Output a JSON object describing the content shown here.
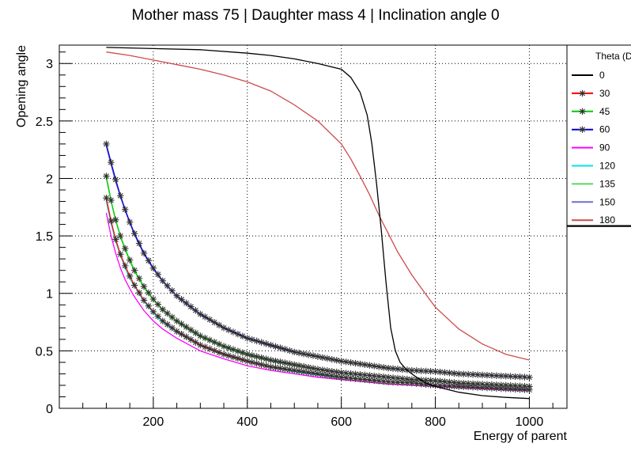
{
  "chart_data": {
    "type": "line",
    "title": "Mother mass 75 | Daughter mass 4 | Inclination angle 0",
    "xlabel": "Energy of parent",
    "ylabel": "Opening angle",
    "xlim": [
      0,
      1080
    ],
    "ylim": [
      0,
      3.16
    ],
    "x_ticks": [
      200,
      400,
      600,
      800,
      1000
    ],
    "y_ticks": [
      0,
      0.5,
      1,
      1.5,
      2,
      2.5,
      3
    ],
    "x_tick_labels": [
      "200",
      "400",
      "600",
      "800",
      "1000"
    ],
    "y_tick_labels": [
      "0",
      "0.5",
      "1",
      "1.5",
      "2",
      "2.5",
      "3"
    ],
    "grid": true,
    "legend_title": "Theta (D",
    "legend_position": "right",
    "series": [
      {
        "name": "0",
        "color": "#000000",
        "marker": false,
        "x": [
          100,
          200,
          300,
          400,
          450,
          500,
          550,
          580,
          600,
          620,
          640,
          655,
          665,
          675,
          685,
          695,
          705,
          715,
          725,
          740,
          760,
          780,
          800,
          850,
          900,
          950,
          1000
        ],
        "y": [
          3.14,
          3.13,
          3.12,
          3.09,
          3.07,
          3.04,
          3.0,
          2.97,
          2.95,
          2.88,
          2.75,
          2.55,
          2.3,
          1.95,
          1.55,
          1.1,
          0.7,
          0.5,
          0.4,
          0.33,
          0.27,
          0.22,
          0.19,
          0.14,
          0.11,
          0.095,
          0.085
        ]
      },
      {
        "name": "30",
        "color": "#ff0000",
        "marker": true,
        "x": [
          100,
          110,
          120,
          130,
          140,
          150,
          160,
          180,
          200,
          220,
          250,
          300,
          350,
          400,
          450,
          500,
          550,
          600,
          650,
          700,
          750,
          800,
          850,
          900,
          950,
          1000
        ],
        "y": [
          1.83,
          1.63,
          1.47,
          1.34,
          1.24,
          1.15,
          1.07,
          0.94,
          0.84,
          0.76,
          0.67,
          0.55,
          0.47,
          0.41,
          0.36,
          0.33,
          0.3,
          0.27,
          0.25,
          0.23,
          0.22,
          0.2,
          0.19,
          0.18,
          0.17,
          0.16
        ]
      },
      {
        "name": "45",
        "color": "#00cc00",
        "marker": true,
        "x": [
          100,
          110,
          120,
          130,
          140,
          150,
          160,
          180,
          200,
          220,
          250,
          300,
          350,
          400,
          450,
          500,
          550,
          600,
          650,
          700,
          750,
          800,
          850,
          900,
          950,
          1000
        ],
        "y": [
          2.02,
          1.81,
          1.64,
          1.5,
          1.39,
          1.29,
          1.2,
          1.06,
          0.95,
          0.86,
          0.76,
          0.63,
          0.54,
          0.47,
          0.42,
          0.38,
          0.34,
          0.31,
          0.29,
          0.27,
          0.25,
          0.24,
          0.22,
          0.21,
          0.2,
          0.19
        ]
      },
      {
        "name": "60",
        "color": "#0000cc",
        "marker": true,
        "x": [
          100,
          110,
          120,
          130,
          140,
          150,
          160,
          180,
          200,
          220,
          250,
          300,
          350,
          400,
          450,
          500,
          550,
          600,
          650,
          700,
          750,
          800,
          850,
          900,
          950,
          1000
        ],
        "y": [
          2.3,
          2.14,
          1.99,
          1.85,
          1.73,
          1.62,
          1.52,
          1.35,
          1.22,
          1.11,
          0.98,
          0.82,
          0.7,
          0.61,
          0.55,
          0.49,
          0.45,
          0.41,
          0.38,
          0.35,
          0.33,
          0.32,
          0.3,
          0.29,
          0.28,
          0.27
        ]
      },
      {
        "name": "90",
        "color": "#ff00ff",
        "marker": false,
        "x": [
          100,
          110,
          120,
          130,
          140,
          150,
          160,
          180,
          200,
          220,
          250,
          300,
          350,
          400,
          450,
          500,
          550,
          600,
          650,
          700,
          750,
          800,
          850,
          900,
          950,
          1000
        ],
        "y": [
          1.7,
          1.5,
          1.35,
          1.22,
          1.12,
          1.04,
          0.97,
          0.85,
          0.76,
          0.69,
          0.61,
          0.5,
          0.43,
          0.37,
          0.33,
          0.3,
          0.27,
          0.25,
          0.23,
          0.21,
          0.2,
          0.19,
          0.18,
          0.17,
          0.16,
          0.155
        ]
      },
      {
        "name": "120",
        "color": "#00e5e5",
        "marker": false,
        "x": [
          100,
          110,
          120,
          130,
          140,
          150,
          160,
          180,
          200,
          220,
          250,
          300,
          350,
          400,
          450,
          500,
          550,
          600,
          650,
          700,
          750,
          800,
          850,
          900,
          950,
          1000
        ],
        "y": [
          1.8,
          1.61,
          1.45,
          1.33,
          1.22,
          1.13,
          1.06,
          0.93,
          0.83,
          0.75,
          0.66,
          0.55,
          0.47,
          0.41,
          0.36,
          0.32,
          0.29,
          0.27,
          0.25,
          0.23,
          0.22,
          0.2,
          0.19,
          0.18,
          0.17,
          0.165
        ]
      },
      {
        "name": "135",
        "color": "#5cd65c",
        "marker": false,
        "x": [
          100,
          110,
          120,
          130,
          140,
          150,
          160,
          180,
          200,
          220,
          250,
          300,
          350,
          400,
          450,
          500,
          550,
          600,
          650,
          700,
          750,
          800,
          850,
          900,
          950,
          1000
        ],
        "y": [
          2.0,
          1.8,
          1.63,
          1.49,
          1.38,
          1.28,
          1.19,
          1.05,
          0.94,
          0.85,
          0.75,
          0.62,
          0.53,
          0.46,
          0.41,
          0.37,
          0.34,
          0.31,
          0.29,
          0.27,
          0.25,
          0.235,
          0.22,
          0.21,
          0.2,
          0.19
        ]
      },
      {
        "name": "150",
        "color": "#6b6bd6",
        "marker": false,
        "x": [
          100,
          110,
          120,
          130,
          140,
          150,
          160,
          180,
          200,
          220,
          250,
          300,
          350,
          400,
          450,
          500,
          550,
          600,
          650,
          700,
          750,
          800,
          850,
          900,
          950,
          1000
        ],
        "y": [
          2.28,
          2.12,
          1.97,
          1.84,
          1.72,
          1.61,
          1.51,
          1.34,
          1.21,
          1.1,
          0.97,
          0.81,
          0.7,
          0.61,
          0.54,
          0.49,
          0.45,
          0.41,
          0.38,
          0.35,
          0.33,
          0.32,
          0.3,
          0.29,
          0.28,
          0.27
        ]
      },
      {
        "name": "180",
        "color": "#cc4c4c",
        "marker": false,
        "x": [
          100,
          150,
          200,
          250,
          300,
          350,
          400,
          450,
          500,
          550,
          600,
          620,
          640,
          660,
          680,
          700,
          720,
          750,
          780,
          800,
          850,
          900,
          950,
          1000
        ],
        "y": [
          3.1,
          3.07,
          3.03,
          2.99,
          2.95,
          2.9,
          2.84,
          2.76,
          2.64,
          2.5,
          2.3,
          2.17,
          2.02,
          1.86,
          1.68,
          1.52,
          1.36,
          1.16,
          0.99,
          0.88,
          0.69,
          0.56,
          0.47,
          0.42
        ]
      }
    ]
  }
}
